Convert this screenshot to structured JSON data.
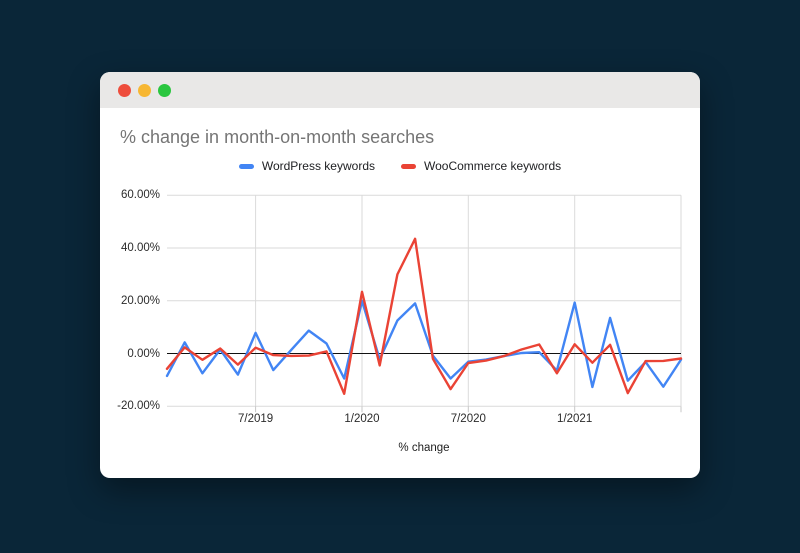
{
  "window": {
    "titlebar_buttons": [
      "close",
      "minimize",
      "maximize"
    ]
  },
  "chart": {
    "title": "% change in month-on-month searches"
  },
  "chart_data": {
    "type": "line",
    "title": "% change in month-on-month searches",
    "xlabel": "% change",
    "ylabel": "",
    "ylim": [
      -20,
      60
    ],
    "grid": true,
    "legend_position": "top",
    "y_ticks": [
      {
        "label": "60.00%",
        "value": 60
      },
      {
        "label": "40.00%",
        "value": 40
      },
      {
        "label": "20.00%",
        "value": 20
      },
      {
        "label": "0.00%",
        "value": 0
      },
      {
        "label": "-20.00%",
        "value": -20
      }
    ],
    "x_tick_indices": [
      5,
      11,
      17,
      23
    ],
    "x_tick_labels": [
      "7/2019",
      "1/2020",
      "7/2020",
      "1/2021"
    ],
    "categories": [
      "2/2019",
      "3/2019",
      "4/2019",
      "5/2019",
      "6/2019",
      "7/2019",
      "8/2019",
      "9/2019",
      "10/2019",
      "11/2019",
      "12/2019",
      "1/2020",
      "2/2020",
      "3/2020",
      "4/2020",
      "5/2020",
      "6/2020",
      "7/2020",
      "8/2020",
      "9/2020",
      "10/2020",
      "11/2020",
      "12/2020",
      "1/2021",
      "2/2021",
      "3/2021",
      "4/2021",
      "5/2021",
      "6/2021",
      "7/2021"
    ],
    "series": [
      {
        "name": "WordPress keywords",
        "color": "#4285F4",
        "values": [
          -8.5,
          4.2,
          -7.5,
          1.5,
          -8.0,
          7.8,
          -6.3,
          1.3,
          8.7,
          3.8,
          -9.5,
          20.0,
          -2.2,
          12.5,
          19.0,
          -0.8,
          -9.5,
          -3.1,
          -2.3,
          -1.0,
          0.2,
          0.5,
          -6.5,
          19.3,
          -12.7,
          13.5,
          -10.3,
          -3.2,
          -12.6,
          -2.3
        ]
      },
      {
        "name": "WooCommerce keywords",
        "color": "#EA4335",
        "values": [
          -5.8,
          2.3,
          -2.4,
          1.9,
          -4.2,
          2.2,
          -0.6,
          -0.9,
          -0.8,
          0.8,
          -15.3,
          23.4,
          -4.5,
          30.0,
          43.5,
          -2.0,
          -13.5,
          -3.6,
          -2.7,
          -1.0,
          1.5,
          3.4,
          -7.5,
          3.5,
          -3.5,
          3.3,
          -15.0,
          -2.9,
          -2.8,
          -1.9
        ]
      }
    ]
  }
}
